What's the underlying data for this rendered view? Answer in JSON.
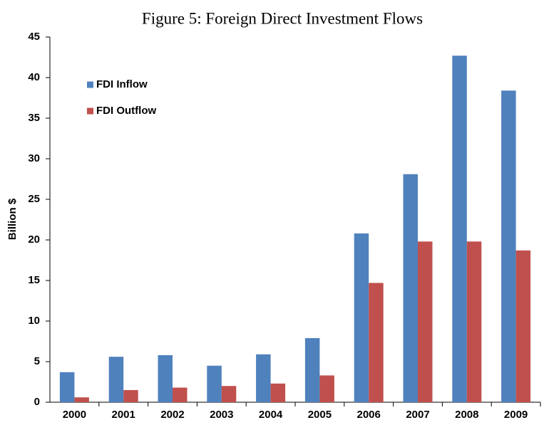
{
  "chart_data": {
    "type": "bar",
    "title": "Figure 5: Foreign Direct Investment Flows",
    "y_label": "Billion $",
    "categories": [
      "2000",
      "2001",
      "2002",
      "2003",
      "2004",
      "2005",
      "2006",
      "2007",
      "2008",
      "2009"
    ],
    "series": [
      {
        "name": "FDI Inflow",
        "color": "#4f81bd",
        "values": [
          3.7,
          5.6,
          5.8,
          4.5,
          5.9,
          7.9,
          20.8,
          28.1,
          42.7,
          38.4
        ]
      },
      {
        "name": "FDI Outflow",
        "color": "#c0504d",
        "values": [
          0.6,
          1.5,
          1.8,
          2.0,
          2.3,
          3.3,
          14.7,
          19.8,
          19.8,
          18.7
        ]
      }
    ],
    "ylim": [
      0,
      45
    ],
    "yticks": [
      0,
      5,
      10,
      15,
      20,
      25,
      30,
      35,
      40,
      45
    ],
    "grid": false,
    "legend": "top-left"
  }
}
